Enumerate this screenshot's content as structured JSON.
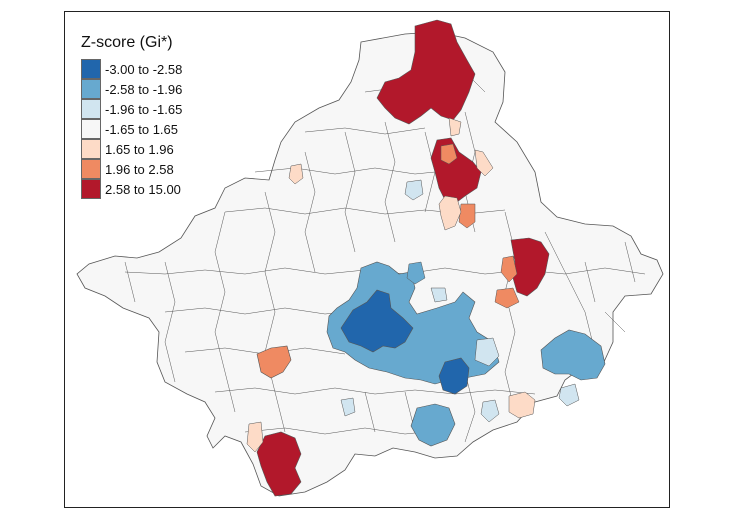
{
  "legend": {
    "title": "Z-score (Gi*)",
    "classes": [
      {
        "label": "-3.00 to -2.58",
        "color": "#2166ac"
      },
      {
        "label": "-2.58 to -1.96",
        "color": "#67a9cf"
      },
      {
        "label": "-1.96 to -1.65",
        "color": "#d1e5f0"
      },
      {
        "label": "-1.65 to 1.65",
        "color": "#f7f7f7"
      },
      {
        "label": "1.65 to 1.96",
        "color": "#fddbc7"
      },
      {
        "label": "1.96 to 2.58",
        "color": "#ef8a62"
      },
      {
        "label": "2.58 to 15.00",
        "color": "#b2182b"
      }
    ]
  },
  "colors": {
    "boundary": "#555555",
    "frame": "#222222"
  }
}
